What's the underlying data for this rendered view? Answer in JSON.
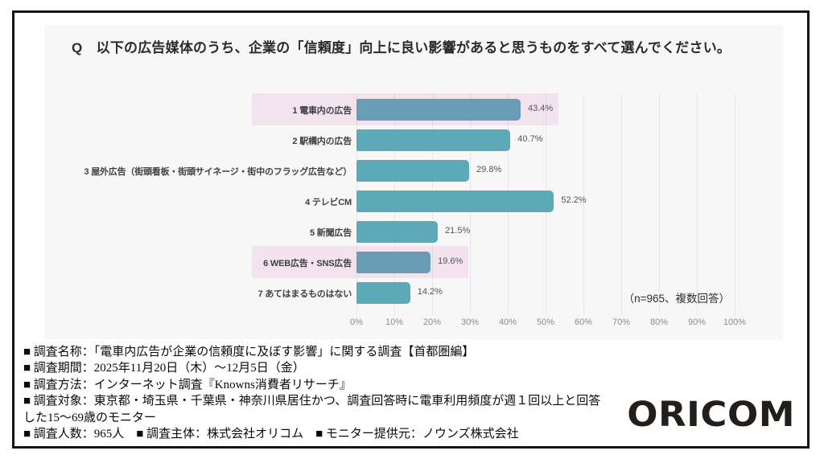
{
  "question": "Q　以下の広告媒体のうち、企業の「信頼度」向上に良い影響があると思うものをすべて選んでください。",
  "logo": "ORICOM",
  "colors": {
    "bar": "#5ca9b8",
    "bar_highlighted": "#6a9cb5",
    "highlight_band": "#f2e3ee",
    "panel_bg": "#f7f7f8",
    "gridline": "rgba(95,95,125,0.10)",
    "border": "#161616",
    "logo": "#221e1b"
  },
  "chart_data": {
    "type": "bar",
    "orientation": "horizontal",
    "title": "",
    "xlabel": "",
    "ylabel": "",
    "xlim": [
      0,
      100
    ],
    "grid": true,
    "legend_position": "none",
    "categories": [
      "1 電車内の広告",
      "2 駅構内の広告",
      "3 屋外広告（街頭看板・街頭サイネージ・街中のフラッグ広告など）",
      "4 テレビCM",
      "5 新聞広告",
      "6 WEB広告・SNS広告",
      "7 あてはまるものはない"
    ],
    "values": [
      43.4,
      40.7,
      29.8,
      52.2,
      21.5,
      19.6,
      14.2
    ],
    "value_labels": [
      "43.4%",
      "40.7%",
      "29.8%",
      "52.2%",
      "21.5%",
      "19.6%",
      "14.2%"
    ],
    "highlighted_indices": [
      0,
      5
    ],
    "x_ticks": [
      "0%",
      "10%",
      "20%",
      "30%",
      "40%",
      "50%",
      "60%",
      "70%",
      "80%",
      "90%",
      "100%"
    ],
    "note": "（n=965、複数回答）"
  },
  "footer": {
    "lines": [
      "■ 調査名称：「電車内広告が企業の信頼度に及ぼす影響」に関する調査【首都圏編】",
      "■ 調査期間：2025年11月20日（木）～12月5日（金）",
      "■ 調査方法：インターネット調査『Knowns消費者リサーチ』",
      "■ 調査対象：東京都・埼玉県・千葉県・神奈川県居住かつ、調査回答時に電車利用頻度が週１回以上と回答",
      "した15～69歳のモニター",
      "■ 調査人数：965人　■ 調査主体：株式会社オリコム　■ モニター提供元：ノウンズ株式会社"
    ]
  }
}
